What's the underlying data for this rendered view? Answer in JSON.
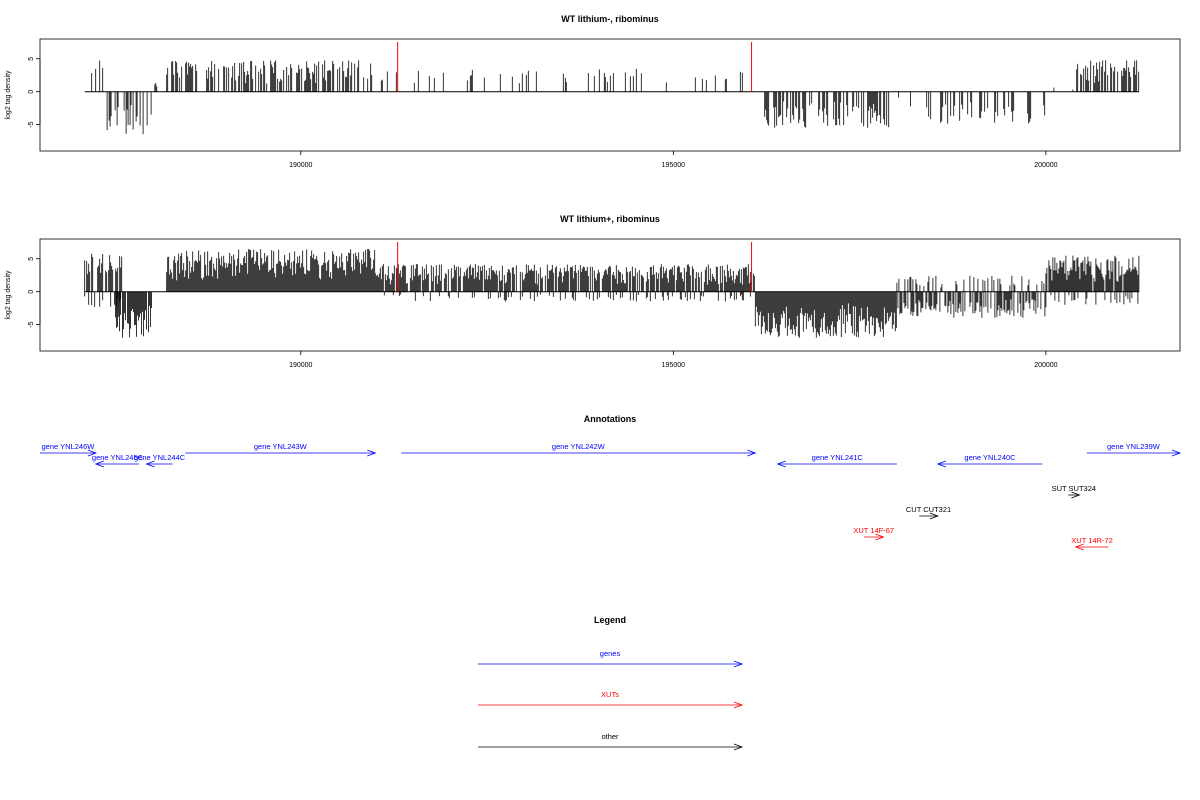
{
  "colors": {
    "gene": "#0000ff",
    "xut": "#ff0000",
    "other": "#000000",
    "marker": "#ff0000",
    "bar": "#000000"
  },
  "chart_data": [
    {
      "type": "bar",
      "title": "WT lithium-, ribominus",
      "ylabel": "log2 tag density",
      "xlim": [
        186500,
        201800
      ],
      "ylim": [
        -9,
        8
      ],
      "yticks": [
        5,
        0,
        -5
      ],
      "xticks": [
        190000,
        195000,
        200000
      ],
      "markers": [
        191300,
        196050
      ],
      "regions": [
        {
          "start": 187100,
          "end": 187400,
          "sign": 1,
          "amp": 5.2,
          "density": 0.18
        },
        {
          "start": 187400,
          "end": 188000,
          "sign": -1,
          "amp": 6.5,
          "density": 0.45
        },
        {
          "start": 188000,
          "end": 188200,
          "sign": 1,
          "amp": 1.5,
          "density": 0.04
        },
        {
          "start": 188200,
          "end": 191000,
          "sign": 1,
          "amp": 4.8,
          "density": 0.55
        },
        {
          "start": 191000,
          "end": 196100,
          "sign": 1,
          "amp": 3.5,
          "density": 0.12
        },
        {
          "start": 196200,
          "end": 197900,
          "sign": -1,
          "amp": 5.5,
          "density": 0.45
        },
        {
          "start": 197900,
          "end": 198400,
          "sign": -1,
          "amp": 2.5,
          "density": 0.06
        },
        {
          "start": 198400,
          "end": 200000,
          "sign": -1,
          "amp": 5.0,
          "density": 0.32
        },
        {
          "start": 200000,
          "end": 200400,
          "sign": 1,
          "amp": 1.0,
          "density": 0.02
        },
        {
          "start": 200400,
          "end": 201250,
          "sign": 1,
          "amp": 4.8,
          "density": 0.55
        }
      ]
    },
    {
      "type": "bar",
      "title": "WT lithium+, ribominus",
      "ylabel": "log2 tag density",
      "xlim": [
        186500,
        201800
      ],
      "ylim": [
        -9,
        8
      ],
      "yticks": [
        5,
        0,
        -5
      ],
      "xticks": [
        190000,
        195000,
        200000
      ],
      "markers": [
        191300,
        196050
      ],
      "regions": [
        {
          "start": 187100,
          "end": 187600,
          "sign": 1,
          "amp": 5.8,
          "density": 0.55
        },
        {
          "start": 187100,
          "end": 187600,
          "sign": -1,
          "amp": 2.5,
          "density": 0.3
        },
        {
          "start": 187500,
          "end": 188000,
          "sign": -1,
          "amp": 7.0,
          "density": 0.9
        },
        {
          "start": 188200,
          "end": 191000,
          "sign": 1,
          "amp": 6.5,
          "density": 1.0
        },
        {
          "start": 191000,
          "end": 196100,
          "sign": 1,
          "amp": 4.2,
          "density": 0.85
        },
        {
          "start": 191000,
          "end": 196100,
          "sign": -1,
          "amp": 1.5,
          "density": 0.2
        },
        {
          "start": 196100,
          "end": 198000,
          "sign": -1,
          "amp": 7.0,
          "density": 1.0
        },
        {
          "start": 198000,
          "end": 200000,
          "sign": -1,
          "amp": 4.0,
          "density": 0.6
        },
        {
          "start": 198000,
          "end": 200000,
          "sign": 1,
          "amp": 2.5,
          "density": 0.3
        },
        {
          "start": 200000,
          "end": 201250,
          "sign": 1,
          "amp": 5.5,
          "density": 0.95
        },
        {
          "start": 200000,
          "end": 201250,
          "sign": -1,
          "amp": 2.0,
          "density": 0.3
        }
      ]
    }
  ],
  "annotations": {
    "title": "Annotations",
    "features": [
      {
        "label": "gene YNL246W",
        "type": "gene",
        "start": 186500,
        "end": 187250,
        "strand": "+",
        "row": 0
      },
      {
        "label": "gene YNL245C",
        "type": "gene",
        "start": 187250,
        "end": 187830,
        "strand": "-",
        "row": 1
      },
      {
        "label": "gene YNL244C",
        "type": "gene",
        "start": 187930,
        "end": 188280,
        "strand": "-",
        "row": 1
      },
      {
        "label": "gene YNL243W",
        "type": "gene",
        "start": 188450,
        "end": 191000,
        "strand": "+",
        "row": 0
      },
      {
        "label": "gene YNL242W",
        "type": "gene",
        "start": 191350,
        "end": 196100,
        "strand": "+",
        "row": 0
      },
      {
        "label": "gene YNL241C",
        "type": "gene",
        "start": 196400,
        "end": 198000,
        "strand": "-",
        "row": 1
      },
      {
        "label": "gene YNL240C",
        "type": "gene",
        "start": 198550,
        "end": 199950,
        "strand": "-",
        "row": 1
      },
      {
        "label": "gene YNL239W",
        "type": "gene",
        "start": 200550,
        "end": 201800,
        "strand": "+",
        "row": 0
      },
      {
        "label": "SUT SUT324",
        "type": "other",
        "start": 200300,
        "end": 200450,
        "strand": "+",
        "row": 2
      },
      {
        "label": "CUT CUT321",
        "type": "other",
        "start": 198300,
        "end": 198550,
        "strand": "+",
        "row": 3
      },
      {
        "label": "XUT 14F-67",
        "type": "xut",
        "start": 197560,
        "end": 197820,
        "strand": "+",
        "row": 4
      },
      {
        "label": "XUT 14R-72",
        "type": "xut",
        "start": 200400,
        "end": 200840,
        "strand": "-",
        "row": 5
      }
    ]
  },
  "legend": {
    "title": "Legend",
    "items": [
      {
        "label": "genes",
        "type": "gene"
      },
      {
        "label": "XUTs",
        "type": "xut"
      },
      {
        "label": "other",
        "type": "other"
      }
    ]
  }
}
